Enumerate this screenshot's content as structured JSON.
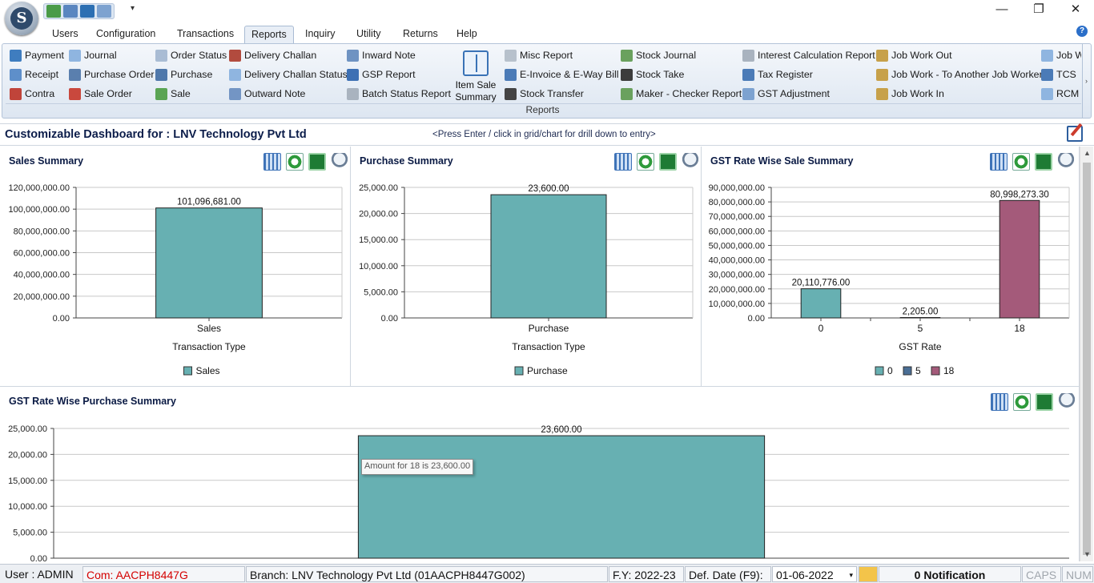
{
  "app": {
    "logo_letter": "S"
  },
  "window": {
    "minimize": "—",
    "maximize": "❐",
    "close": "✕"
  },
  "tabs": [
    "Users",
    "Configuration",
    "Transactions",
    "Reports",
    "Inquiry",
    "Utility",
    "Returns",
    "Help"
  ],
  "active_tab": "Reports",
  "ribbon": {
    "group_label": "Reports",
    "col1": [
      "Payment",
      "Receipt",
      "Contra"
    ],
    "col2": [
      "Journal",
      "Purchase Order",
      "Sale Order"
    ],
    "col3": [
      "Order Status",
      "Purchase",
      "Sale"
    ],
    "col4": [
      "Delivery Challan",
      "Delivery Challan Status",
      "Outward Note"
    ],
    "col5": [
      "Inward Note",
      "GSP Report",
      "Batch Status Report"
    ],
    "big": [
      "Item Sale",
      "Summary"
    ],
    "col6": [
      "Misc Report",
      "E-Invoice & E-Way Bill",
      "Stock Transfer"
    ],
    "col7": [
      "Stock Journal",
      "Stock Take",
      "Maker - Checker Report"
    ],
    "col8": [
      "Interest Calculation Report",
      "Tax Register",
      "GST Adjustment"
    ],
    "col9": [
      "Job Work Out",
      "Job Work - To Another Job Worker",
      "Job Work In"
    ],
    "col10": [
      "Job W",
      "TCS",
      "RCM F"
    ],
    "scroll_arrow": "›"
  },
  "dashboard": {
    "title": "Customizable Dashboard for : LNV Technology Pvt Ltd",
    "hint": "<Press Enter / click in grid/chart for drill down to entry>"
  },
  "panels": {
    "sales": {
      "title": "Sales Summary"
    },
    "purchase": {
      "title": "Purchase Summary"
    },
    "gst_sale": {
      "title": "GST Rate Wise Sale Summary"
    },
    "gst_purchase": {
      "title": "GST Rate Wise Purchase Summary"
    }
  },
  "tooltip": "Amount for 18 is 23,600.00",
  "chart_data": [
    {
      "id": "sales",
      "type": "bar",
      "title": "Sales Summary",
      "xlabel": "Transaction Type",
      "ylabel": "",
      "categories": [
        "Sales"
      ],
      "values": [
        101096681.0
      ],
      "value_labels": [
        "101,096,681.00"
      ],
      "ylim": [
        0,
        120000000
      ],
      "yticks": [
        "120,000,000.00",
        "100,000,000.00",
        "80,000,000.00",
        "60,000,000.00",
        "40,000,000.00",
        "20,000,000.00",
        "0.00"
      ],
      "legend": [
        {
          "label": "Sales",
          "color": "#67b0b2"
        }
      ],
      "colors": [
        "#67b0b2"
      ]
    },
    {
      "id": "purchase",
      "type": "bar",
      "title": "Purchase Summary",
      "xlabel": "Transaction Type",
      "ylabel": "",
      "categories": [
        "Purchase"
      ],
      "values": [
        23600.0
      ],
      "value_labels": [
        "23,600.00"
      ],
      "ylim": [
        0,
        25000
      ],
      "yticks": [
        "25,000.00",
        "20,000.00",
        "15,000.00",
        "10,000.00",
        "5,000.00",
        "0.00"
      ],
      "legend": [
        {
          "label": "Purchase",
          "color": "#67b0b2"
        }
      ],
      "colors": [
        "#67b0b2"
      ]
    },
    {
      "id": "gst_sale",
      "type": "bar",
      "title": "GST Rate Wise Sale Summary",
      "xlabel": "GST Rate",
      "ylabel": "",
      "categories": [
        "0",
        "5",
        "18"
      ],
      "values": [
        20110776.0,
        2205.0,
        80998273.3
      ],
      "value_labels": [
        "20,110,776.00",
        "2,205.00",
        "80,998,273.30"
      ],
      "ylim": [
        0,
        90000000
      ],
      "yticks": [
        "90,000,000.00",
        "80,000,000.00",
        "70,000,000.00",
        "60,000,000.00",
        "50,000,000.00",
        "40,000,000.00",
        "30,000,000.00",
        "20,000,000.00",
        "10,000,000.00",
        "0.00"
      ],
      "legend": [
        {
          "label": "0",
          "color": "#67b0b2"
        },
        {
          "label": "5",
          "color": "#4a6e95"
        },
        {
          "label": "18",
          "color": "#a45a7a"
        }
      ],
      "colors": [
        "#67b0b2",
        "#4a6e95",
        "#a45a7a"
      ]
    },
    {
      "id": "gst_purchase",
      "type": "bar",
      "title": "GST Rate Wise Purchase Summary",
      "xlabel": "",
      "ylabel": "",
      "categories": [
        "18"
      ],
      "values": [
        23600.0
      ],
      "value_labels": [
        "23,600.00"
      ],
      "ylim": [
        0,
        25000
      ],
      "yticks": [
        "25,000.00",
        "20,000.00",
        "15,000.00",
        "10,000.00",
        "5,000.00",
        "0.00"
      ],
      "legend": [],
      "colors": [
        "#67b0b2"
      ]
    }
  ],
  "status": {
    "user": "User : ADMIN",
    "company": "Com: AACPH8447G",
    "branch": "Branch: LNV Technology Pvt Ltd (01AACPH8447G002)",
    "fy": "F.Y: 2022-23",
    "def_date_label": "Def. Date (F9):",
    "def_date": "01-06-2022",
    "notification": "0 Notification",
    "caps": "CAPS",
    "num": "NUM"
  },
  "colors": {
    "bar_teal": "#67b0b2",
    "bar_blue": "#4a6e95",
    "bar_maroon": "#a45a7a",
    "company_red": "#d40000"
  }
}
